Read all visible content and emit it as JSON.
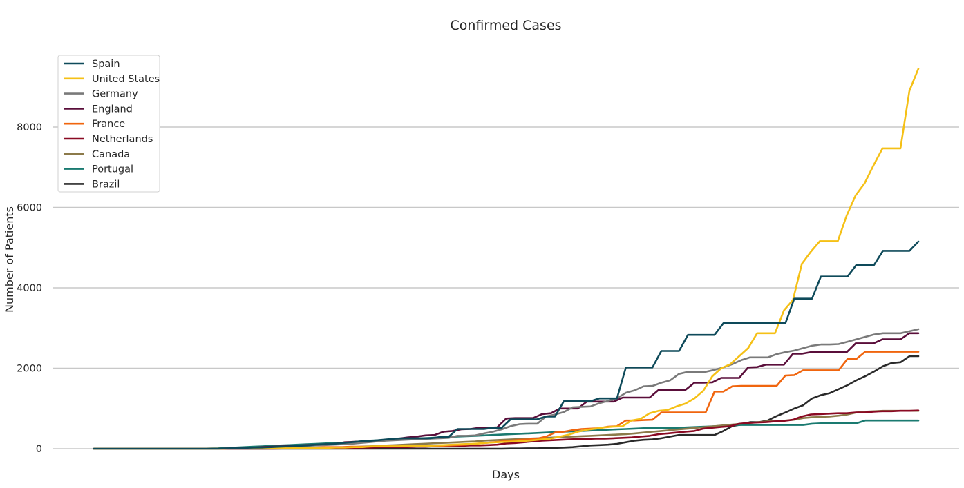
{
  "chart_data": {
    "type": "line",
    "title": "Confirmed Cases",
    "xlabel": "Days",
    "ylabel": "Number of Patients",
    "xlim": [
      0,
      99
    ],
    "ylim": [
      0,
      9800
    ],
    "yticks": [
      0,
      2000,
      4000,
      6000,
      8000
    ],
    "grid": "horizontal",
    "legend_position": "top-left",
    "series": [
      {
        "name": "Spain",
        "color": "#0e4a5a",
        "values": [
          0,
          0,
          0,
          0,
          0,
          0,
          0,
          0,
          0,
          0,
          0,
          0,
          0,
          0,
          0,
          10,
          15,
          20,
          25,
          30,
          40,
          50,
          60,
          70,
          80,
          100,
          110,
          120,
          140,
          160,
          180,
          190,
          210,
          230,
          250,
          260,
          260,
          260,
          260,
          290,
          290,
          490,
          490,
          490,
          490,
          520,
          520,
          730,
          730,
          730,
          730,
          800,
          800,
          1180,
          1180,
          1180,
          1180,
          1250,
          1250,
          1250,
          2020,
          2020,
          2020,
          2020,
          2430,
          2430,
          2430,
          2830,
          2830,
          2830,
          2830,
          3120,
          3120,
          3120,
          3120,
          3120,
          3120,
          3120,
          3120,
          3730,
          3730,
          3730,
          4280,
          4280,
          4280,
          4280,
          4570,
          4570,
          4570,
          4920,
          4920,
          4920,
          4920,
          5150
        ]
      },
      {
        "name": "United States",
        "color": "#f5c016",
        "values": [
          0,
          0,
          0,
          0,
          0,
          0,
          0,
          0,
          0,
          0,
          0,
          0,
          0,
          0,
          0,
          5,
          5,
          5,
          5,
          10,
          10,
          10,
          10,
          20,
          20,
          20,
          20,
          30,
          30,
          40,
          40,
          60,
          60,
          60,
          60,
          70,
          70,
          70,
          80,
          90,
          100,
          110,
          120,
          130,
          150,
          160,
          170,
          180,
          190,
          210,
          230,
          250,
          300,
          350,
          420,
          470,
          500,
          530,
          550,
          560,
          700,
          740,
          880,
          940,
          960,
          1050,
          1120,
          1250,
          1440,
          1800,
          2000,
          2100,
          2300,
          2500,
          2870,
          2870,
          2870,
          3440,
          3700,
          4600,
          4900,
          5160,
          5160,
          5160,
          5800,
          6300,
          6600,
          7050,
          7470,
          7470,
          7470,
          8900,
          9450
        ]
      },
      {
        "name": "Germany",
        "color": "#7a7a7a",
        "values": [
          0,
          0,
          0,
          0,
          0,
          0,
          0,
          0,
          0,
          0,
          0,
          0,
          0,
          0,
          0,
          10,
          10,
          15,
          20,
          25,
          30,
          40,
          50,
          60,
          70,
          80,
          90,
          100,
          110,
          120,
          140,
          160,
          180,
          200,
          210,
          220,
          230,
          240,
          250,
          260,
          270,
          320,
          320,
          330,
          380,
          420,
          480,
          560,
          610,
          620,
          620,
          800,
          850,
          910,
          1030,
          1040,
          1050,
          1130,
          1190,
          1250,
          1390,
          1450,
          1550,
          1560,
          1640,
          1700,
          1860,
          1910,
          1910,
          1910,
          1960,
          2020,
          2100,
          2200,
          2270,
          2270,
          2270,
          2350,
          2400,
          2440,
          2500,
          2560,
          2590,
          2590,
          2600,
          2660,
          2720,
          2780,
          2840,
          2870,
          2870,
          2870,
          2920,
          2970
        ]
      },
      {
        "name": "England",
        "color": "#5a0e3a",
        "values": [
          0,
          0,
          0,
          0,
          0,
          0,
          0,
          0,
          0,
          0,
          0,
          0,
          0,
          0,
          0,
          10,
          15,
          20,
          30,
          40,
          50,
          60,
          70,
          80,
          90,
          100,
          110,
          120,
          160,
          170,
          180,
          190,
          200,
          210,
          250,
          280,
          300,
          330,
          340,
          420,
          440,
          480,
          490,
          520,
          520,
          530,
          750,
          760,
          760,
          760,
          860,
          880,
          1000,
          1000,
          1000,
          1170,
          1170,
          1170,
          1170,
          1270,
          1270,
          1270,
          1270,
          1460,
          1460,
          1460,
          1460,
          1640,
          1640,
          1650,
          1760,
          1760,
          1760,
          2020,
          2030,
          2090,
          2090,
          2090,
          2360,
          2360,
          2400,
          2400,
          2400,
          2400,
          2400,
          2620,
          2620,
          2620,
          2720,
          2720,
          2720,
          2870,
          2870
        ]
      },
      {
        "name": "France",
        "color": "#f0650e",
        "values": [
          0,
          0,
          0,
          0,
          0,
          0,
          0,
          0,
          0,
          0,
          0,
          0,
          0,
          0,
          0,
          5,
          5,
          5,
          5,
          10,
          10,
          10,
          10,
          20,
          20,
          30,
          40,
          40,
          40,
          50,
          50,
          50,
          60,
          60,
          60,
          60,
          60,
          70,
          70,
          70,
          80,
          90,
          100,
          120,
          140,
          160,
          180,
          200,
          220,
          230,
          250,
          300,
          400,
          420,
          460,
          490,
          500,
          510,
          550,
          560,
          700,
          700,
          710,
          720,
          900,
          900,
          900,
          900,
          900,
          900,
          1420,
          1420,
          1550,
          1560,
          1560,
          1560,
          1560,
          1560,
          1820,
          1830,
          1950,
          1950,
          1950,
          1950,
          1950,
          2230,
          2230,
          2410,
          2410,
          2410,
          2410,
          2410,
          2410,
          2410
        ]
      },
      {
        "name": "Netherlands",
        "color": "#8a0a23",
        "values": [
          0,
          0,
          0,
          0,
          0,
          0,
          0,
          0,
          0,
          0,
          0,
          0,
          0,
          0,
          0,
          0,
          0,
          0,
          0,
          0,
          0,
          5,
          5,
          5,
          10,
          10,
          10,
          20,
          20,
          20,
          30,
          30,
          40,
          40,
          40,
          40,
          50,
          50,
          60,
          60,
          60,
          70,
          80,
          80,
          90,
          100,
          130,
          140,
          160,
          180,
          200,
          210,
          220,
          230,
          240,
          240,
          250,
          250,
          260,
          270,
          280,
          300,
          320,
          360,
          380,
          400,
          420,
          440,
          500,
          520,
          540,
          560,
          620,
          640,
          650,
          660,
          680,
          690,
          720,
          800,
          850,
          860,
          870,
          880,
          880,
          900,
          900,
          920,
          930,
          930,
          940,
          940,
          950
        ]
      },
      {
        "name": "Canada",
        "color": "#8c7a4a",
        "values": [
          0,
          0,
          0,
          0,
          0,
          0,
          0,
          0,
          0,
          0,
          0,
          0,
          0,
          0,
          0,
          0,
          0,
          0,
          0,
          0,
          5,
          5,
          5,
          10,
          10,
          20,
          20,
          30,
          30,
          40,
          50,
          60,
          70,
          80,
          90,
          100,
          110,
          120,
          130,
          140,
          150,
          160,
          170,
          180,
          200,
          210,
          220,
          230,
          240,
          250,
          260,
          270,
          280,
          290,
          300,
          310,
          320,
          330,
          340,
          350,
          360,
          380,
          400,
          420,
          440,
          460,
          480,
          500,
          520,
          540,
          560,
          580,
          600,
          620,
          640,
          660,
          680,
          690,
          700,
          720,
          760,
          780,
          790,
          800,
          820,
          850,
          900,
          920,
          930,
          940,
          940,
          940,
          940,
          940
        ]
      },
      {
        "name": "Portugal",
        "color": "#1a7a70",
        "values": [
          0,
          0,
          0,
          0,
          0,
          0,
          0,
          0,
          0,
          0,
          0,
          0,
          0,
          5,
          10,
          20,
          30,
          40,
          50,
          60,
          70,
          80,
          90,
          100,
          110,
          120,
          130,
          140,
          150,
          160,
          180,
          200,
          210,
          220,
          230,
          240,
          250,
          260,
          270,
          280,
          290,
          300,
          310,
          320,
          330,
          340,
          350,
          360,
          370,
          380,
          390,
          400,
          410,
          420,
          430,
          440,
          450,
          460,
          470,
          480,
          490,
          500,
          510,
          510,
          510,
          510,
          520,
          530,
          540,
          550,
          560,
          570,
          580,
          590,
          590,
          590,
          590,
          590,
          590,
          590,
          590,
          620,
          630,
          630,
          630,
          630,
          630,
          700,
          700,
          700,
          700,
          700,
          700,
          700
        ]
      },
      {
        "name": "Brazil",
        "color": "#2a2a2a",
        "values": [
          0,
          0,
          0,
          0,
          0,
          0,
          0,
          0,
          0,
          0,
          0,
          0,
          0,
          0,
          0,
          0,
          0,
          0,
          0,
          0,
          0,
          0,
          0,
          0,
          0,
          0,
          0,
          0,
          0,
          0,
          0,
          0,
          0,
          0,
          0,
          0,
          0,
          0,
          0,
          0,
          0,
          0,
          0,
          0,
          0,
          0,
          0,
          5,
          5,
          10,
          10,
          15,
          20,
          30,
          40,
          60,
          80,
          90,
          100,
          120,
          160,
          200,
          220,
          230,
          260,
          300,
          340,
          340,
          340,
          340,
          340,
          440,
          560,
          600,
          660,
          660,
          700,
          810,
          900,
          1000,
          1080,
          1250,
          1330,
          1380,
          1480,
          1580,
          1700,
          1800,
          1920,
          2050,
          2130,
          2150,
          2300,
          2300
        ]
      }
    ]
  }
}
